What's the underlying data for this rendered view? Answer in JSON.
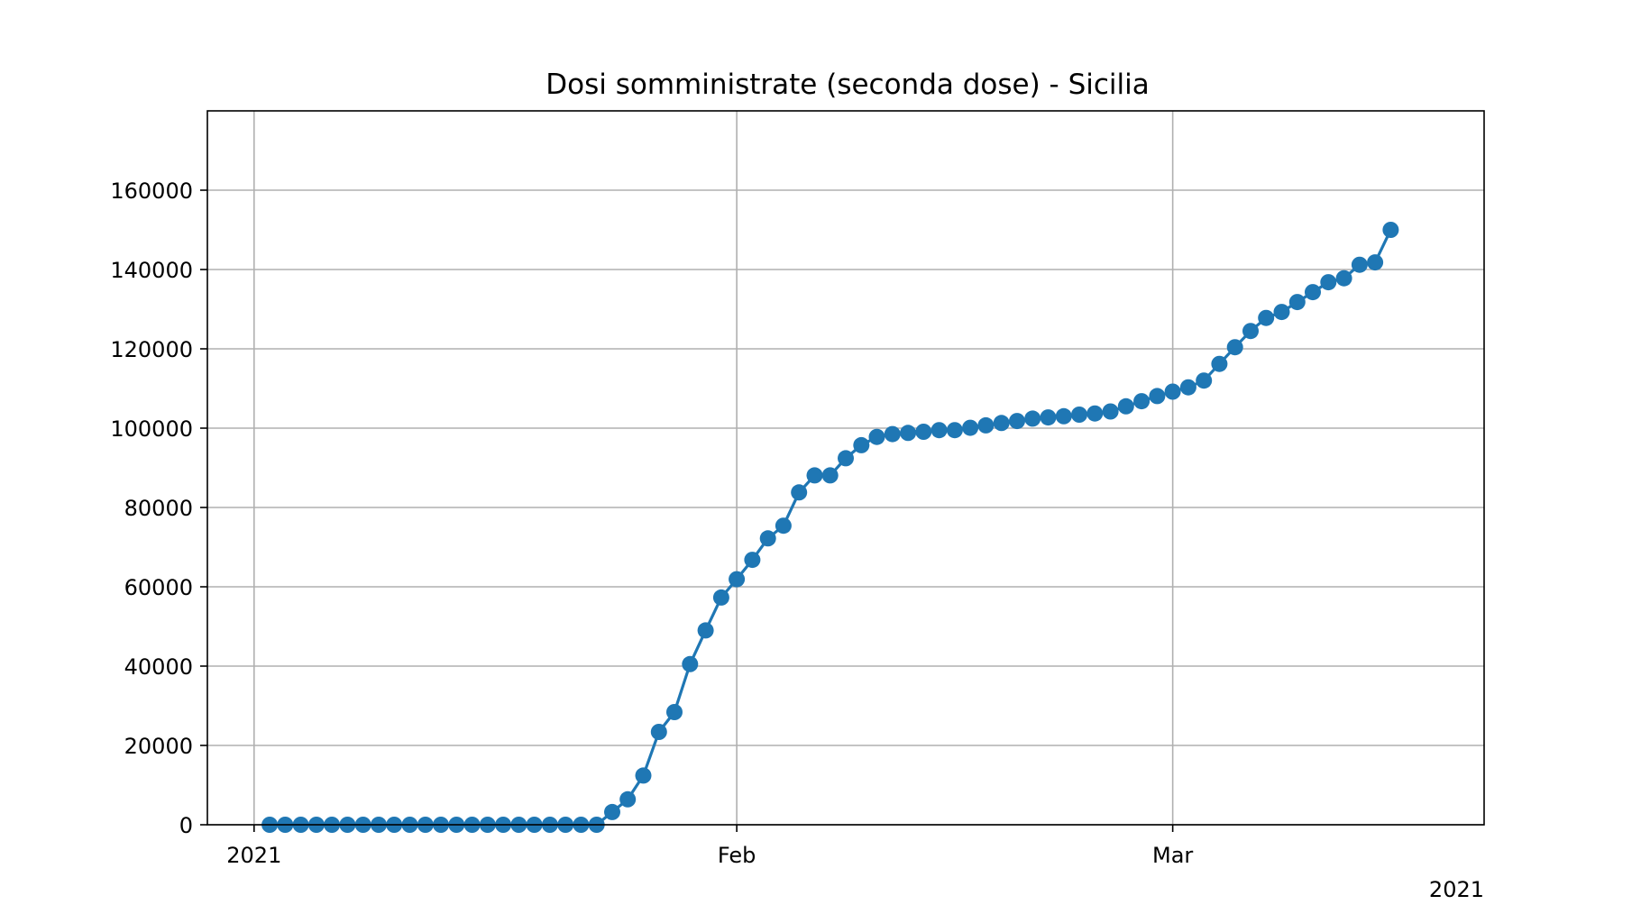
{
  "chart_data": {
    "type": "line",
    "title": "Dosi somministrate (seconda dose) - Sicilia",
    "xlabel": "",
    "ylabel": "",
    "x_start": "2021-01-02",
    "x_end": "2021-03-14",
    "xlim": [
      "2020-12-29",
      "2021-03-21"
    ],
    "ylim": [
      0,
      180000
    ],
    "grid": true,
    "legend": "none",
    "color": "#1f77b4",
    "x_ticks": [
      {
        "date": "2021-01-01",
        "label": "2021"
      },
      {
        "date": "2021-02-01",
        "label": "Feb"
      },
      {
        "date": "2021-03-01",
        "label": "Mar"
      }
    ],
    "x_offset_label": "2021",
    "y_ticks": [
      0,
      20000,
      40000,
      60000,
      80000,
      100000,
      120000,
      140000,
      160000
    ],
    "y_tick_labels": [
      "0",
      "20000",
      "40000",
      "60000",
      "80000",
      "100000",
      "120000",
      "140000",
      "160000"
    ],
    "series": [
      {
        "values": [
          0,
          0,
          0,
          0,
          0,
          0,
          0,
          0,
          0,
          0,
          0,
          0,
          0,
          0,
          0,
          0,
          0,
          0,
          0,
          0,
          0,
          0,
          3200,
          6400,
          12400,
          23400,
          28400,
          40500,
          49000,
          57300,
          61900,
          66800,
          72200,
          75400,
          83800,
          88100,
          88100,
          92400,
          95700,
          97800,
          98500,
          98800,
          99100,
          99500,
          99500,
          100100,
          100700,
          101300,
          101800,
          102400,
          102700,
          103000,
          103400,
          103700,
          104200,
          105500,
          106800,
          108100,
          109200,
          110300,
          112000,
          116200,
          120400,
          124500,
          127800,
          129300,
          131800,
          134300,
          136800,
          137800,
          141200,
          141800,
          150000
        ]
      }
    ]
  }
}
